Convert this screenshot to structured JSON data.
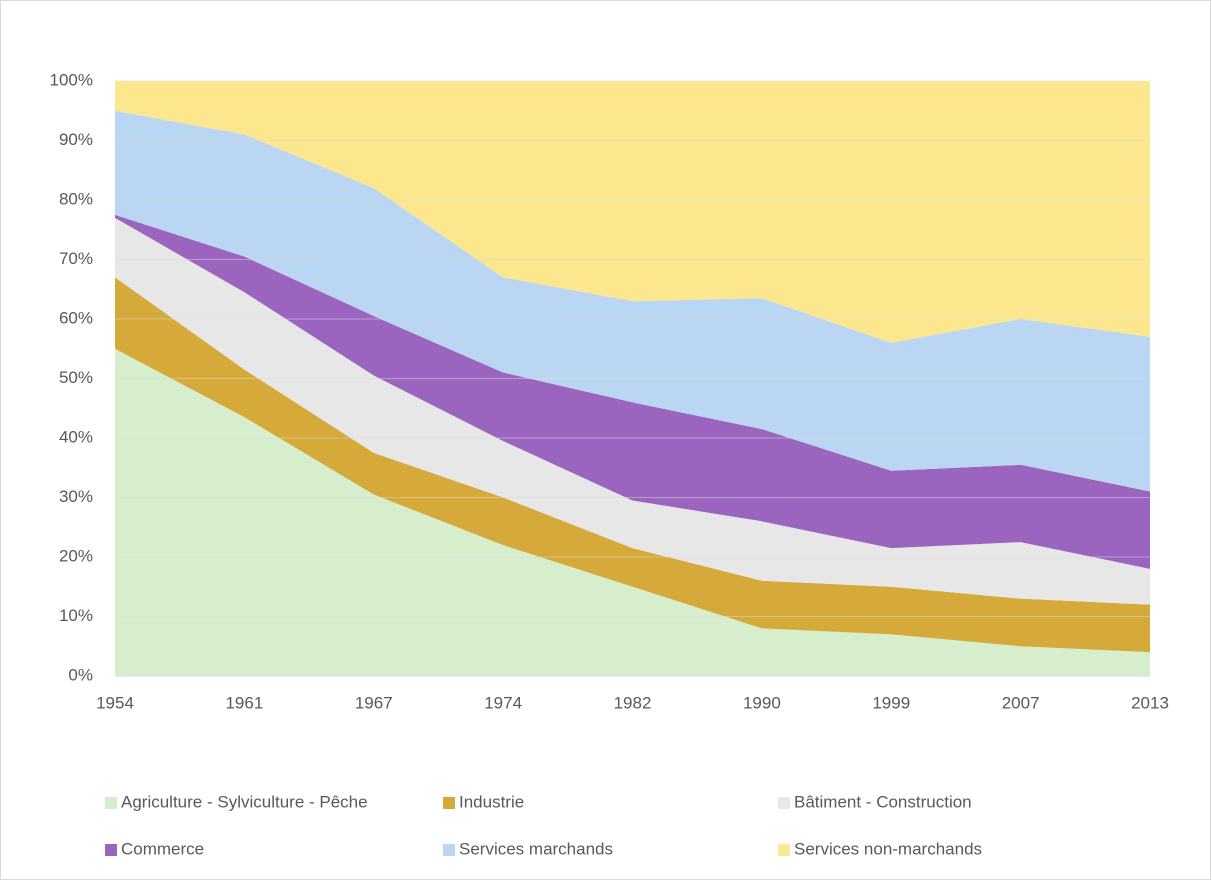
{
  "chart_data": {
    "type": "stacked_area",
    "categories": [
      "1954",
      "1961",
      "1967",
      "1974",
      "1982",
      "1990",
      "1999",
      "2007",
      "2013"
    ],
    "series": [
      {
        "name": "Agriculture - Sylviculture - Pêche",
        "color": "#d6eecc",
        "values": [
          55,
          43.5,
          30.5,
          22,
          15,
          8,
          7,
          5,
          4
        ]
      },
      {
        "name": "Industrie",
        "color": "#d5a93a",
        "values": [
          12,
          8,
          7,
          8,
          6.5,
          8,
          8,
          8,
          8
        ]
      },
      {
        "name": "Bâtiment - Construction",
        "color": "#e7e7e7",
        "values": [
          10,
          13,
          13,
          9.5,
          8,
          10,
          6.5,
          9.5,
          6
        ]
      },
      {
        "name": "Commerce",
        "color": "#9a64bf",
        "values": [
          0.5,
          6,
          10,
          11.5,
          16.5,
          15.5,
          13,
          13,
          13
        ]
      },
      {
        "name": "Services marchands",
        "color": "#bbd6f2",
        "values": [
          17.5,
          20.5,
          21.5,
          16,
          17,
          22,
          21.5,
          24.5,
          26
        ]
      },
      {
        "name": "Services non-marchands",
        "color": "#fde78e",
        "values": [
          5,
          9,
          18,
          33,
          37,
          36.5,
          44,
          40,
          43
        ]
      }
    ],
    "ylim": [
      0,
      100
    ],
    "yticks": [
      {
        "value": 0,
        "label": "0%"
      },
      {
        "value": 10,
        "label": "10%"
      },
      {
        "value": 20,
        "label": "20%"
      },
      {
        "value": 30,
        "label": "30%"
      },
      {
        "value": 40,
        "label": "40%"
      },
      {
        "value": 50,
        "label": "50%"
      },
      {
        "value": 60,
        "label": "60%"
      },
      {
        "value": 70,
        "label": "70%"
      },
      {
        "value": 80,
        "label": "80%"
      },
      {
        "value": 90,
        "label": "90%"
      },
      {
        "value": 100,
        "label": "100%"
      }
    ],
    "grid": true
  }
}
